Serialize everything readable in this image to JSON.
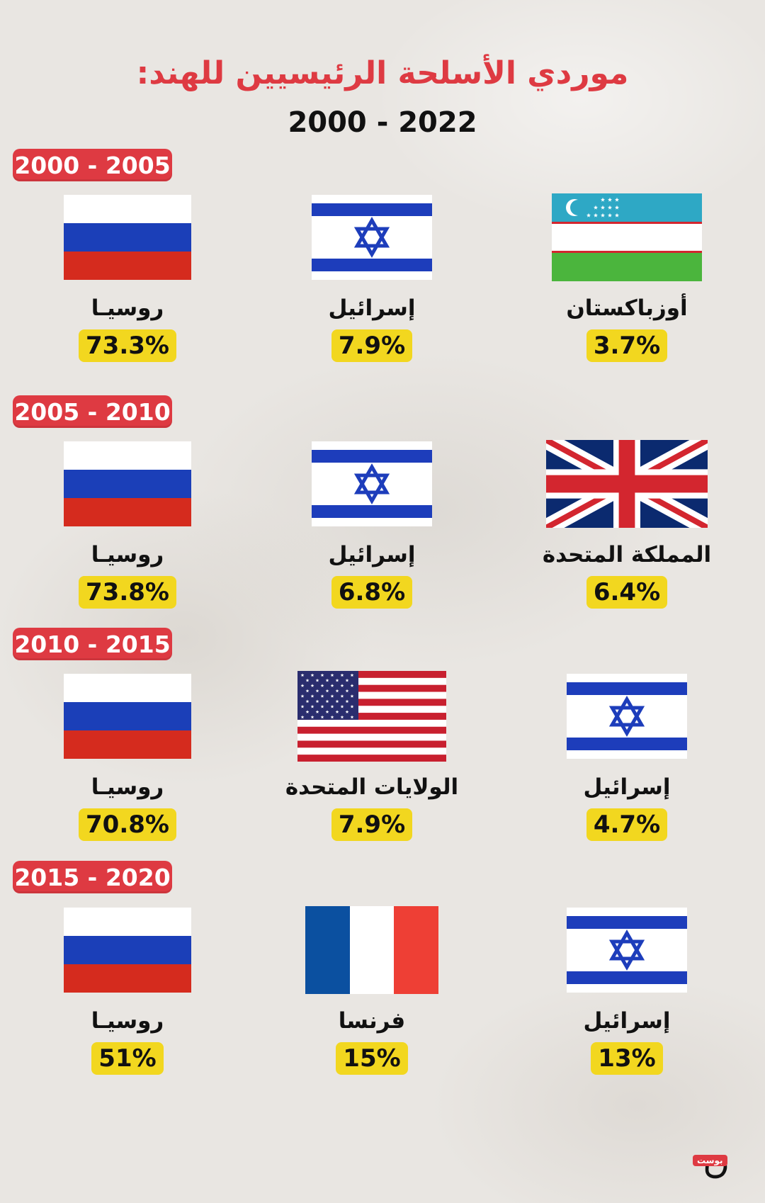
{
  "title": "موردي الأسلحة الرئيسيين للهند:",
  "subtitle": "2000 - 2022",
  "periods": [
    {
      "label": "2000 - 2005",
      "suppliers": [
        {
          "country": "روسيـا",
          "percent": "73.3%",
          "flag": "russia-flag-icon"
        },
        {
          "country": "إسرائيل",
          "percent": "7.9%",
          "flag": "israel-flag-icon"
        },
        {
          "country": "أوزباكستان",
          "percent": "3.7%",
          "flag": "uzbekistan-flag-icon"
        }
      ]
    },
    {
      "label": "2005 - 2010",
      "suppliers": [
        {
          "country": "روسيـا",
          "percent": "73.8%",
          "flag": "russia-flag-icon"
        },
        {
          "country": "إسرائيل",
          "percent": "6.8%",
          "flag": "israel-flag-icon"
        },
        {
          "country": "المملكة المتحدة",
          "percent": "6.4%",
          "flag": "uk-flag-icon"
        }
      ]
    },
    {
      "label": "2010 - 2015",
      "suppliers": [
        {
          "country": "روسيـا",
          "percent": "70.8%",
          "flag": "russia-flag-icon"
        },
        {
          "country": "الولايات المتحدة",
          "percent": "7.9%",
          "flag": "usa-flag-icon"
        },
        {
          "country": "إسرائيل",
          "percent": "4.7%",
          "flag": "israel-flag-icon"
        }
      ]
    },
    {
      "label": "2015 - 2020",
      "suppliers": [
        {
          "country": "روسيـا",
          "percent": "51%",
          "flag": "russia-flag-icon"
        },
        {
          "country": "فرنسا",
          "percent": "15%",
          "flag": "france-flag-icon"
        },
        {
          "country": "إسرائيل",
          "percent": "13%",
          "flag": "israel-flag-icon"
        }
      ]
    }
  ],
  "logo": {
    "tag": "بوست",
    "mark": "ن"
  },
  "colors": {
    "accent": "#de3a42",
    "highlight": "#f2d71f",
    "background": "#e9e6e2"
  }
}
